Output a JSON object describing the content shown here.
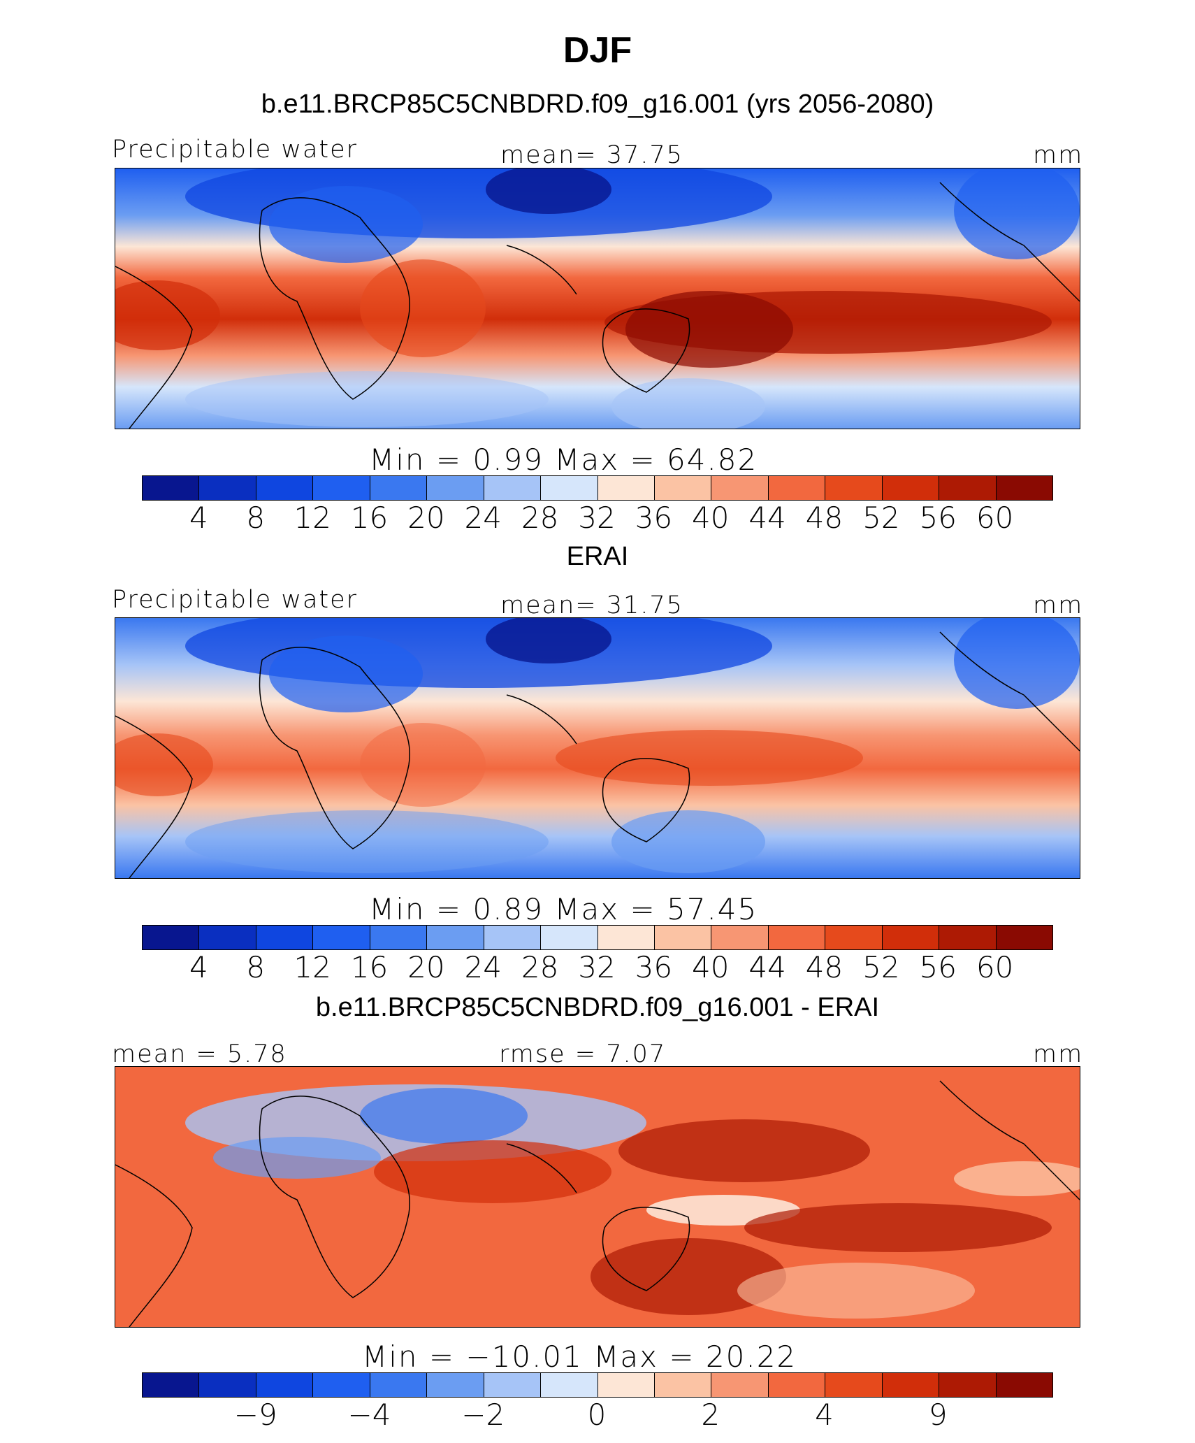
{
  "title": "DJF",
  "panels": [
    {
      "subtitle": "b.e11.BRCP85C5CNBDRD.f09_g16.001 (yrs 2056-2080)",
      "left_label": "Precipitable water",
      "center_label": "mean=   37.75",
      "right_label": "mm",
      "min_max": "Min  =     0.99  Max  =    64.82",
      "ticks": [
        "4",
        "8",
        "12",
        "16",
        "20",
        "24",
        "28",
        "32",
        "36",
        "40",
        "44",
        "48",
        "52",
        "56",
        "60"
      ]
    },
    {
      "subtitle": "ERAI",
      "left_label": "Precipitable water",
      "center_label": "mean=   31.75",
      "right_label": "mm",
      "min_max": "Min  =     0.89  Max  =    57.45",
      "ticks": [
        "4",
        "8",
        "12",
        "16",
        "20",
        "24",
        "28",
        "32",
        "36",
        "40",
        "44",
        "48",
        "52",
        "56",
        "60"
      ]
    },
    {
      "subtitle": "b.e11.BRCP85C5CNBDRD.f09_g16.001 - ERAI",
      "left_label": "mean  =    5.78",
      "center_label": "rmse  =    7.07",
      "right_label": "mm",
      "min_max": "Min  = −10.01  Max  =    20.22",
      "ticks": [
        "−9",
        "−4",
        "−2",
        "0",
        "2",
        "4",
        "9"
      ]
    }
  ],
  "colors": {
    "palette": [
      "#08168f",
      "#0a2fc0",
      "#0f46e0",
      "#1f5ff0",
      "#3a78f0",
      "#6b9df2",
      "#a6c4f7",
      "#d6e6fb",
      "#fde6d6",
      "#fbc3a4",
      "#f79673",
      "#f2683f",
      "#e64a1c",
      "#d12e0a",
      "#ad1a04",
      "#8a0a02"
    ]
  }
}
